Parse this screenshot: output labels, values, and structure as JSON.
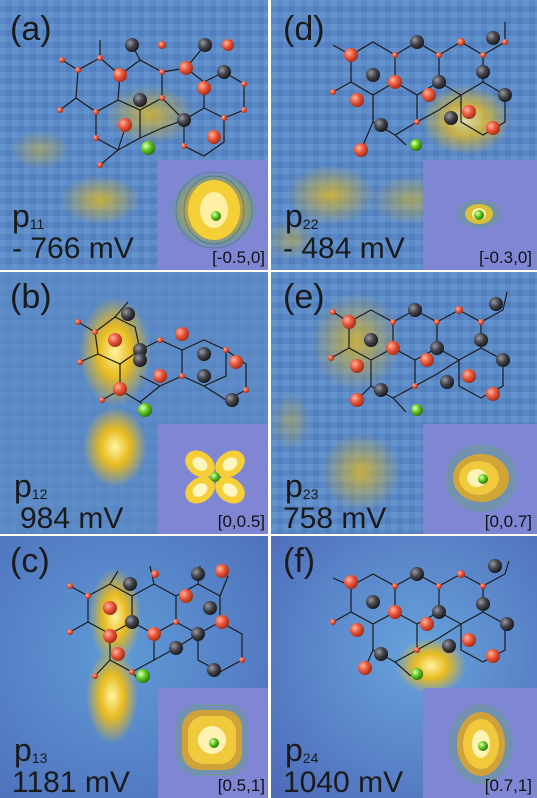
{
  "panels": [
    {
      "id": "a",
      "label": "(a)",
      "state": "p",
      "sub": "11",
      "voltage": "- 766 mV",
      "coords": "[-0.5,0]"
    },
    {
      "id": "b",
      "label": "(b)",
      "state": "p",
      "sub": "12",
      "voltage": "984 mV",
      "coords": "[0,0.5]"
    },
    {
      "id": "c",
      "label": "(c)",
      "state": "p",
      "sub": "13",
      "voltage": "1181 mV",
      "coords": "[0.5,1]"
    },
    {
      "id": "d",
      "label": "(d)",
      "state": "p",
      "sub": "22",
      "voltage": "- 484 mV",
      "coords": "[-0.3,0]"
    },
    {
      "id": "e",
      "label": "(e)",
      "state": "p",
      "sub": "23",
      "voltage": "758 mV",
      "coords": "[0,0.7]"
    },
    {
      "id": "f",
      "label": "(f)",
      "state": "p",
      "sub": "24",
      "voltage": "1040 mV",
      "coords": "[0.7,1]"
    }
  ],
  "colors": {
    "background_blue": "#5a88c6",
    "inset_blue": "#7f86d4",
    "density_yellow": "#e3b21a",
    "oxygen_atom": "#e8553a",
    "carbon_atom": "#3a3a42",
    "dopant_atom": "#5cc71e"
  }
}
